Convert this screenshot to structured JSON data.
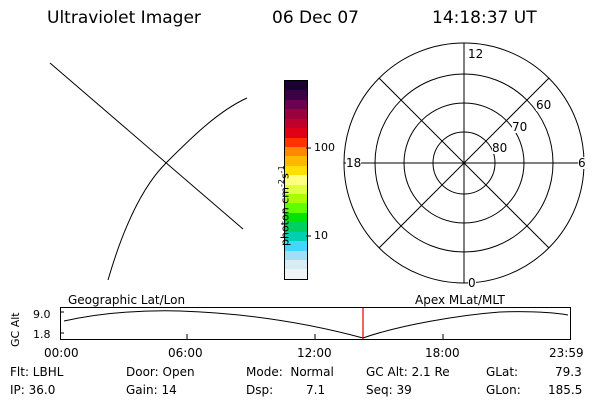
{
  "header": {
    "title": "Ultraviolet Imager",
    "date": "06 Dec 07",
    "time": "14:18:37 UT"
  },
  "colorbar": {
    "label": "photon cm⁻²s⁻¹",
    "label_base": "photon cm",
    "label_sup1": "-2",
    "label_mid": "s",
    "label_sup2": "-1",
    "tick_100": "100",
    "tick_10": "10",
    "colors": [
      "#1a0030",
      "#3b0046",
      "#6b0050",
      "#9a0040",
      "#c0002a",
      "#e00015",
      "#ff3300",
      "#ff8800",
      "#ffb800",
      "#ffe000",
      "#ffff80",
      "#e0ff40",
      "#a8ff00",
      "#60ff00",
      "#00e400",
      "#00d060",
      "#00d0b0",
      "#40d8ff",
      "#a0e0f0",
      "#d8ecf4",
      "#eef4f8"
    ]
  },
  "polar": {
    "mlt_top": "12",
    "mlt_left": "18",
    "mlt_right": "6",
    "mlt_bottom": "0",
    "lat_60": "60",
    "lat_70": "70",
    "lat_80": "80"
  },
  "timeline": {
    "y_axis_label": "GC Alt",
    "left_title": "Geographic Lat/Lon",
    "right_title": "Apex MLat/MLT",
    "y_ticks": [
      "9.0",
      "1.8"
    ],
    "x_ticks": [
      "00:00",
      "06:00",
      "12:00",
      "18:00",
      "23:59"
    ],
    "current_marker_color": "#e00000"
  },
  "status": {
    "flt": "Flt: LBHL",
    "ip": "IP: 36.0",
    "door": "Door: Open",
    "gain": "Gain: 14",
    "mode": "Mode:  Normal",
    "dsp": "Dsp:",
    "dsp_value": "7.1",
    "gc_alt": "GC Alt: 2.1 Re",
    "seq": "Seq: 39",
    "glat_label": "GLat:",
    "glat_value": "79.3",
    "glon_label": "GLon:",
    "glon_value": "185.5"
  }
}
